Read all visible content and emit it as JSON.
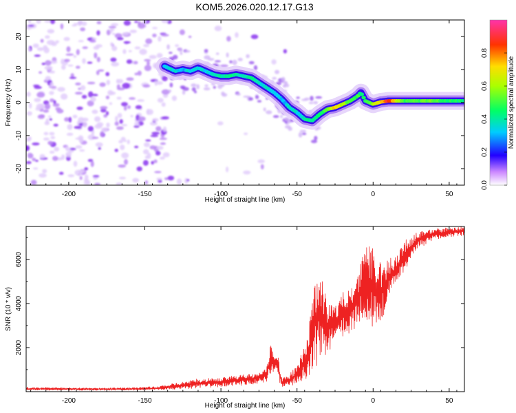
{
  "title": "KOM5.2026.020.12.17.G13",
  "chart_data": [
    {
      "type": "heatmap",
      "xlabel": "Height of straight line (km)",
      "ylabel": "Frequency (Hz)",
      "xlim": [
        -228,
        60
      ],
      "ylim": [
        -25,
        25
      ],
      "x_ticks": [
        -200,
        -150,
        -100,
        -50,
        0,
        50
      ],
      "y_ticks": [
        -20,
        -10,
        0,
        10,
        20
      ],
      "ridge": {
        "x": [
          -137,
          -130,
          -125,
          -120,
          -115,
          -110,
          -105,
          -100,
          -95,
          -90,
          -85,
          -80,
          -75,
          -70,
          -65,
          -60,
          -55,
          -50,
          -45,
          -40,
          -35,
          -30,
          -25,
          -20,
          -15,
          -10,
          -8,
          -5,
          0,
          5,
          10,
          20,
          30,
          40,
          50,
          60
        ],
        "y": [
          11,
          9.5,
          10,
          9.5,
          10.5,
          9.5,
          8.5,
          8,
          8,
          8.5,
          8,
          7.5,
          6,
          4.5,
          3,
          1,
          -1.5,
          -3,
          -5,
          -5.5,
          -3.5,
          -2,
          -1.5,
          -0.5,
          0.5,
          2,
          3,
          0.5,
          -0.5,
          0.2,
          0.5,
          0.5,
          0.5,
          0.5,
          0.5,
          0.5
        ],
        "amplitude": [
          0.35,
          0.35,
          0.3,
          0.35,
          0.35,
          0.35,
          0.35,
          0.4,
          0.4,
          0.4,
          0.4,
          0.4,
          0.35,
          0.35,
          0.35,
          0.3,
          0.35,
          0.35,
          0.4,
          0.4,
          0.45,
          0.55,
          0.75,
          0.6,
          0.5,
          0.5,
          0.45,
          0.45,
          0.6,
          0.7,
          0.9,
          0.5,
          0.5,
          0.55,
          0.45,
          0.45
        ]
      },
      "colorbar": {
        "label": "Normalized spectral amplitude",
        "ticks": [
          0.0,
          0.2,
          0.4,
          0.6,
          0.8
        ],
        "range": [
          0,
          1
        ]
      }
    },
    {
      "type": "line",
      "xlabel": "Height of straight line (km)",
      "ylabel": "SNR (10 * v/v)",
      "xlim": [
        -228,
        60
      ],
      "ylim": [
        0,
        7500
      ],
      "x_ticks": [
        -200,
        -150,
        -100,
        -50,
        0,
        50
      ],
      "y_ticks": [
        2000,
        4000,
        6000
      ],
      "series_color": "#ee2222",
      "envelope": {
        "x": [
          -228,
          -200,
          -160,
          -140,
          -125,
          -115,
          -100,
          -90,
          -80,
          -75,
          -70,
          -68,
          -65,
          -62,
          -60,
          -55,
          -50,
          -45,
          -42,
          -38,
          -35,
          -30,
          -25,
          -20,
          -15,
          -10,
          -5,
          0,
          5,
          10,
          15,
          20,
          25,
          30,
          40,
          50,
          60
        ],
        "low": [
          60,
          60,
          60,
          80,
          120,
          150,
          220,
          260,
          320,
          380,
          450,
          800,
          900,
          500,
          200,
          250,
          350,
          400,
          600,
          1000,
          1500,
          1700,
          2200,
          2400,
          2700,
          3000,
          3200,
          2800,
          3000,
          4200,
          4800,
          5400,
          6000,
          6500,
          6900,
          7000,
          7100
        ],
        "high": [
          200,
          180,
          180,
          250,
          450,
          600,
          650,
          750,
          800,
          900,
          1100,
          2100,
          2000,
          1500,
          600,
          800,
          1200,
          2400,
          3000,
          5400,
          5500,
          4200,
          4200,
          4600,
          4700,
          5300,
          6900,
          6500,
          6000,
          6100,
          6200,
          6800,
          7100,
          7300,
          7400,
          7450,
          7500
        ]
      }
    }
  ]
}
